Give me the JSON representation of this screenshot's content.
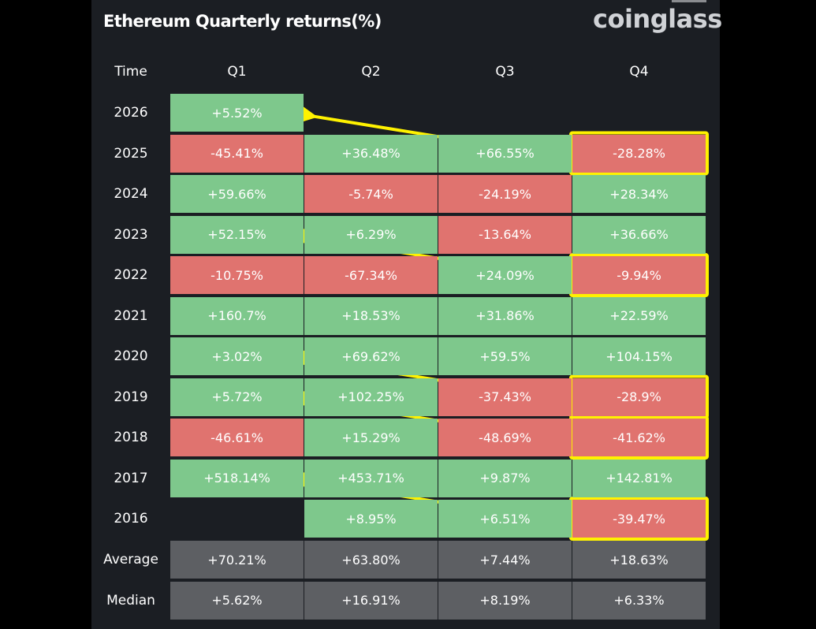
{
  "title": "Ethereum Quarterly returns(%)",
  "brand": "coinglass",
  "chart_data": {
    "type": "table",
    "columns": [
      "Time",
      "Q1",
      "Q2",
      "Q3",
      "Q4"
    ],
    "rows": [
      {
        "time": "2026",
        "values": [
          "+5.52%",
          null,
          null,
          null
        ]
      },
      {
        "time": "2025",
        "values": [
          "-45.41%",
          "+36.48%",
          "+66.55%",
          "-28.28%"
        ]
      },
      {
        "time": "2024",
        "values": [
          "+59.66%",
          "-5.74%",
          "-24.19%",
          "+28.34%"
        ]
      },
      {
        "time": "2023",
        "values": [
          "+52.15%",
          "+6.29%",
          "-13.64%",
          "+36.66%"
        ]
      },
      {
        "time": "2022",
        "values": [
          "-10.75%",
          "-67.34%",
          "+24.09%",
          "-9.94%"
        ]
      },
      {
        "time": "2021",
        "values": [
          "+160.7%",
          "+18.53%",
          "+31.86%",
          "+22.59%"
        ]
      },
      {
        "time": "2020",
        "values": [
          "+3.02%",
          "+69.62%",
          "+59.5%",
          "+104.15%"
        ]
      },
      {
        "time": "2019",
        "values": [
          "+5.72%",
          "+102.25%",
          "-37.43%",
          "-28.9%"
        ]
      },
      {
        "time": "2018",
        "values": [
          "-46.61%",
          "+15.29%",
          "-48.69%",
          "-41.62%"
        ]
      },
      {
        "time": "2017",
        "values": [
          "+518.14%",
          "+453.71%",
          "+9.87%",
          "+142.81%"
        ]
      },
      {
        "time": "2016",
        "values": [
          null,
          "+8.95%",
          "+6.51%",
          "-39.47%"
        ]
      }
    ],
    "summary": [
      {
        "label": "Average",
        "values": [
          "+70.21%",
          "+63.80%",
          "+7.44%",
          "+18.63%"
        ]
      },
      {
        "label": "Median",
        "values": [
          "+5.62%",
          "+16.91%",
          "+8.19%",
          "+6.33%"
        ]
      }
    ],
    "colors": {
      "positive": "#7ec88c",
      "negative": "#e0736f",
      "summary": "#5d5f63",
      "highlight": "#fff200"
    },
    "annotations": {
      "highlighted_cells": [
        {
          "year": "2025",
          "quarter": "Q4"
        },
        {
          "year": "2022",
          "quarter": "Q4"
        },
        {
          "year": "2019",
          "quarter": "Q4"
        },
        {
          "year": "2018",
          "quarter": "Q4"
        },
        {
          "year": "2016",
          "quarter": "Q4"
        }
      ],
      "arrows": [
        {
          "from": {
            "year": "2025",
            "quarter": "Q4"
          },
          "to": {
            "year": "2026",
            "quarter": "Q1"
          }
        },
        {
          "from": {
            "year": "2022",
            "quarter": "Q4"
          },
          "to": {
            "year": "2023",
            "quarter": "Q1"
          }
        },
        {
          "from": {
            "year": "2019",
            "quarter": "Q4"
          },
          "to": {
            "year": "2020",
            "quarter": "Q1"
          }
        },
        {
          "from": {
            "year": "2018",
            "quarter": "Q4"
          },
          "to": {
            "year": "2019",
            "quarter": "Q1"
          }
        },
        {
          "from": {
            "year": "2016",
            "quarter": "Q4"
          },
          "to": {
            "year": "2017",
            "quarter": "Q1"
          }
        }
      ]
    }
  }
}
